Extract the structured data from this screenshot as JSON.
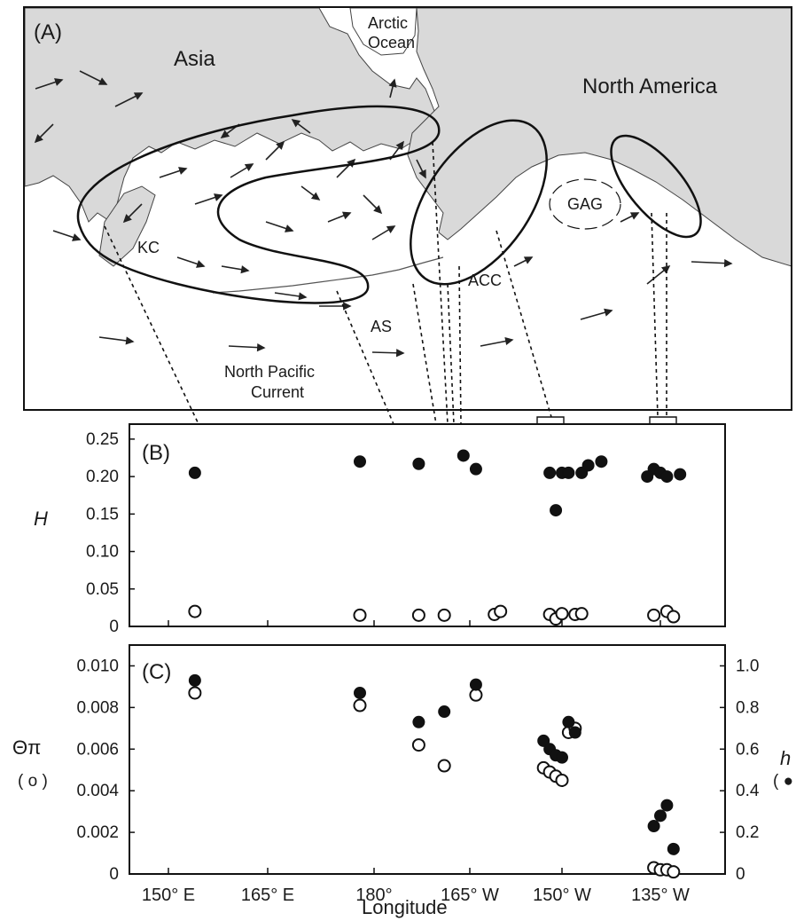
{
  "figure": {
    "panel_a": {
      "letter": "(A)",
      "labels": {
        "asia": "Asia",
        "arctic_line1": "Arctic",
        "arctic_line2": "Ocean",
        "north_america": "North America",
        "kc": "KC",
        "acc": "ACC",
        "gag": "GAG",
        "as": "AS",
        "npc_line1": "North Pacific",
        "npc_line2": "Current"
      }
    },
    "panel_b": {
      "letter": "(B)",
      "ylabel": "H"
    },
    "panel_c": {
      "letter": "(C)",
      "ylabel_left": "Θπ",
      "ylabel_left_marker": "( o )",
      "ylabel_right": "h",
      "ylabel_right_marker": "( ● )"
    },
    "xlabel": "Longitude"
  },
  "chart_data": [
    {
      "type": "scatter",
      "panel": "B",
      "ylabel": "H",
      "ylim": [
        0,
        0.27
      ],
      "yticks": [
        "0",
        "0.05",
        "0.10",
        "0.15",
        "0.20",
        "0.25"
      ],
      "xticks": [
        "150° E",
        "165° E",
        "180°",
        "165° W",
        "150° W",
        "135° W"
      ],
      "xlim": [
        145,
        225
      ],
      "series": [
        {
          "marker": "filled",
          "points": [
            [
              154,
              0.205
            ],
            [
              178,
              0.22
            ],
            [
              187,
              0.217
            ],
            [
              194,
              0.228
            ],
            [
              196,
              0.21
            ],
            [
              208,
              0.205
            ],
            [
              210,
              0.205
            ],
            [
              209,
              0.155
            ],
            [
              211,
              0.205
            ],
            [
              213,
              0.205
            ],
            [
              214,
              0.215
            ],
            [
              216,
              0.22
            ],
            [
              224,
              0.21
            ],
            [
              225,
              0.205
            ],
            [
              226,
              0.2
            ],
            [
              223,
              0.2
            ],
            [
              228,
              0.203
            ]
          ]
        },
        {
          "marker": "open",
          "points": [
            [
              154,
              0.02
            ],
            [
              178,
              0.015
            ],
            [
              187,
              0.015
            ],
            [
              191,
              0.015
            ],
            [
              199,
              0.016
            ],
            [
              200,
              0.02
            ],
            [
              208,
              0.016
            ],
            [
              209,
              0.01
            ],
            [
              210,
              0.017
            ],
            [
              212,
              0.016
            ],
            [
              213,
              0.017
            ],
            [
              224,
              0.015
            ],
            [
              226,
              0.02
            ],
            [
              227,
              0.013
            ]
          ]
        }
      ]
    },
    {
      "type": "scatter",
      "panel": "C",
      "ylabel_left": "Θπ",
      "ylabel_right": "h",
      "ylim_left": [
        0,
        0.011
      ],
      "ylim_right": [
        0,
        1.1
      ],
      "yticks_left": [
        "0",
        "0.002",
        "0.004",
        "0.006",
        "0.008",
        "0.010"
      ],
      "yticks_right": [
        "0",
        "0.2",
        "0.4",
        "0.6",
        "0.8",
        "1.0"
      ],
      "xticks": [
        "150° E",
        "165° E",
        "180°",
        "165° W",
        "150° W",
        "135° W"
      ],
      "xlabel": "Longitude",
      "series": [
        {
          "marker": "open",
          "axis": "left",
          "points": [
            [
              154,
              0.0087
            ],
            [
              178,
              0.0081
            ],
            [
              187,
              0.0062
            ],
            [
              191,
              0.0052
            ],
            [
              196,
              0.0086
            ],
            [
              207,
              0.0051
            ],
            [
              208,
              0.0049
            ],
            [
              209,
              0.0047
            ],
            [
              210,
              0.0045
            ],
            [
              211,
              0.0068
            ],
            [
              212,
              0.007
            ],
            [
              224,
              0.0003
            ],
            [
              225,
              0.0002
            ],
            [
              226,
              0.0002
            ],
            [
              227,
              0.0001
            ]
          ]
        },
        {
          "marker": "filled",
          "axis": "right",
          "points": [
            [
              154,
              0.93
            ],
            [
              178,
              0.87
            ],
            [
              187,
              0.73
            ],
            [
              191,
              0.78
            ],
            [
              196,
              0.91
            ],
            [
              207,
              0.64
            ],
            [
              208,
              0.6
            ],
            [
              209,
              0.57
            ],
            [
              210,
              0.56
            ],
            [
              211,
              0.73
            ],
            [
              212,
              0.68
            ],
            [
              224,
              0.23
            ],
            [
              225,
              0.28
            ],
            [
              226,
              0.33
            ],
            [
              227,
              0.12
            ]
          ]
        }
      ]
    }
  ]
}
